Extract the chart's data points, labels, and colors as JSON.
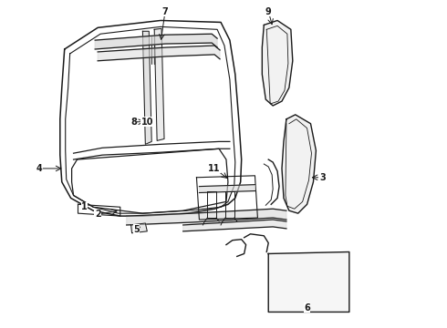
{
  "background_color": "#ffffff",
  "line_color": "#1a1a1a",
  "gray_fill": "#d8d8d8",
  "light_fill": "#efefef"
}
